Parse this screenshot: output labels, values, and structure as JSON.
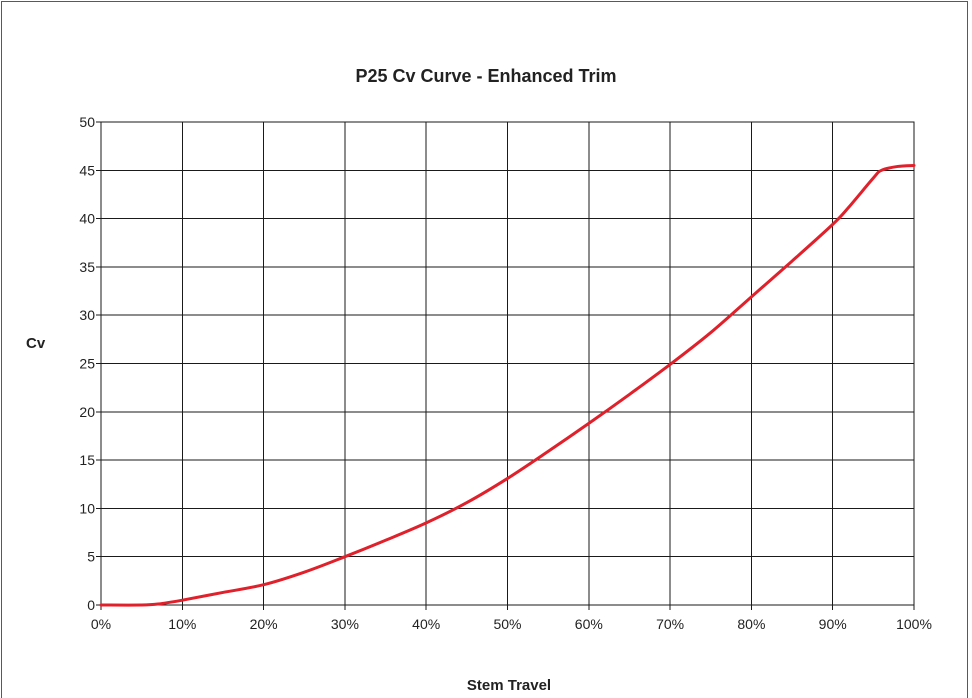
{
  "chart_data": {
    "type": "line",
    "title": "P25 Cv Curve - Enhanced Trim",
    "xlabel": "Stem Travel",
    "ylabel": "Cv",
    "xlim": [
      0,
      100
    ],
    "ylim": [
      0,
      50
    ],
    "grid": true,
    "x_tick_labels": [
      "0%",
      "10%",
      "20%",
      "30%",
      "40%",
      "50%",
      "60%",
      "70%",
      "80%",
      "90%",
      "100%"
    ],
    "y_tick_labels": [
      "0",
      "5",
      "10",
      "15",
      "20",
      "25",
      "30",
      "35",
      "40",
      "45",
      "50"
    ],
    "x_ticks": [
      0,
      10,
      20,
      30,
      40,
      50,
      60,
      70,
      80,
      90,
      100
    ],
    "y_ticks": [
      0,
      5,
      10,
      15,
      20,
      25,
      30,
      35,
      40,
      45,
      50
    ],
    "series": [
      {
        "color": "#e0202a",
        "x": [
          0,
          5,
          7,
          10,
          15,
          20,
          25,
          30,
          35,
          40,
          45,
          50,
          55,
          60,
          65,
          70,
          75,
          80,
          85,
          90,
          92,
          95,
          96,
          98,
          100
        ],
        "y": [
          0,
          0,
          0.1,
          0.5,
          1.3,
          2.1,
          3.4,
          5.0,
          6.7,
          8.5,
          10.6,
          13.1,
          15.9,
          18.8,
          21.8,
          24.9,
          28.2,
          31.9,
          35.6,
          39.4,
          41.2,
          44.2,
          45.0,
          45.4,
          45.5
        ]
      }
    ]
  }
}
